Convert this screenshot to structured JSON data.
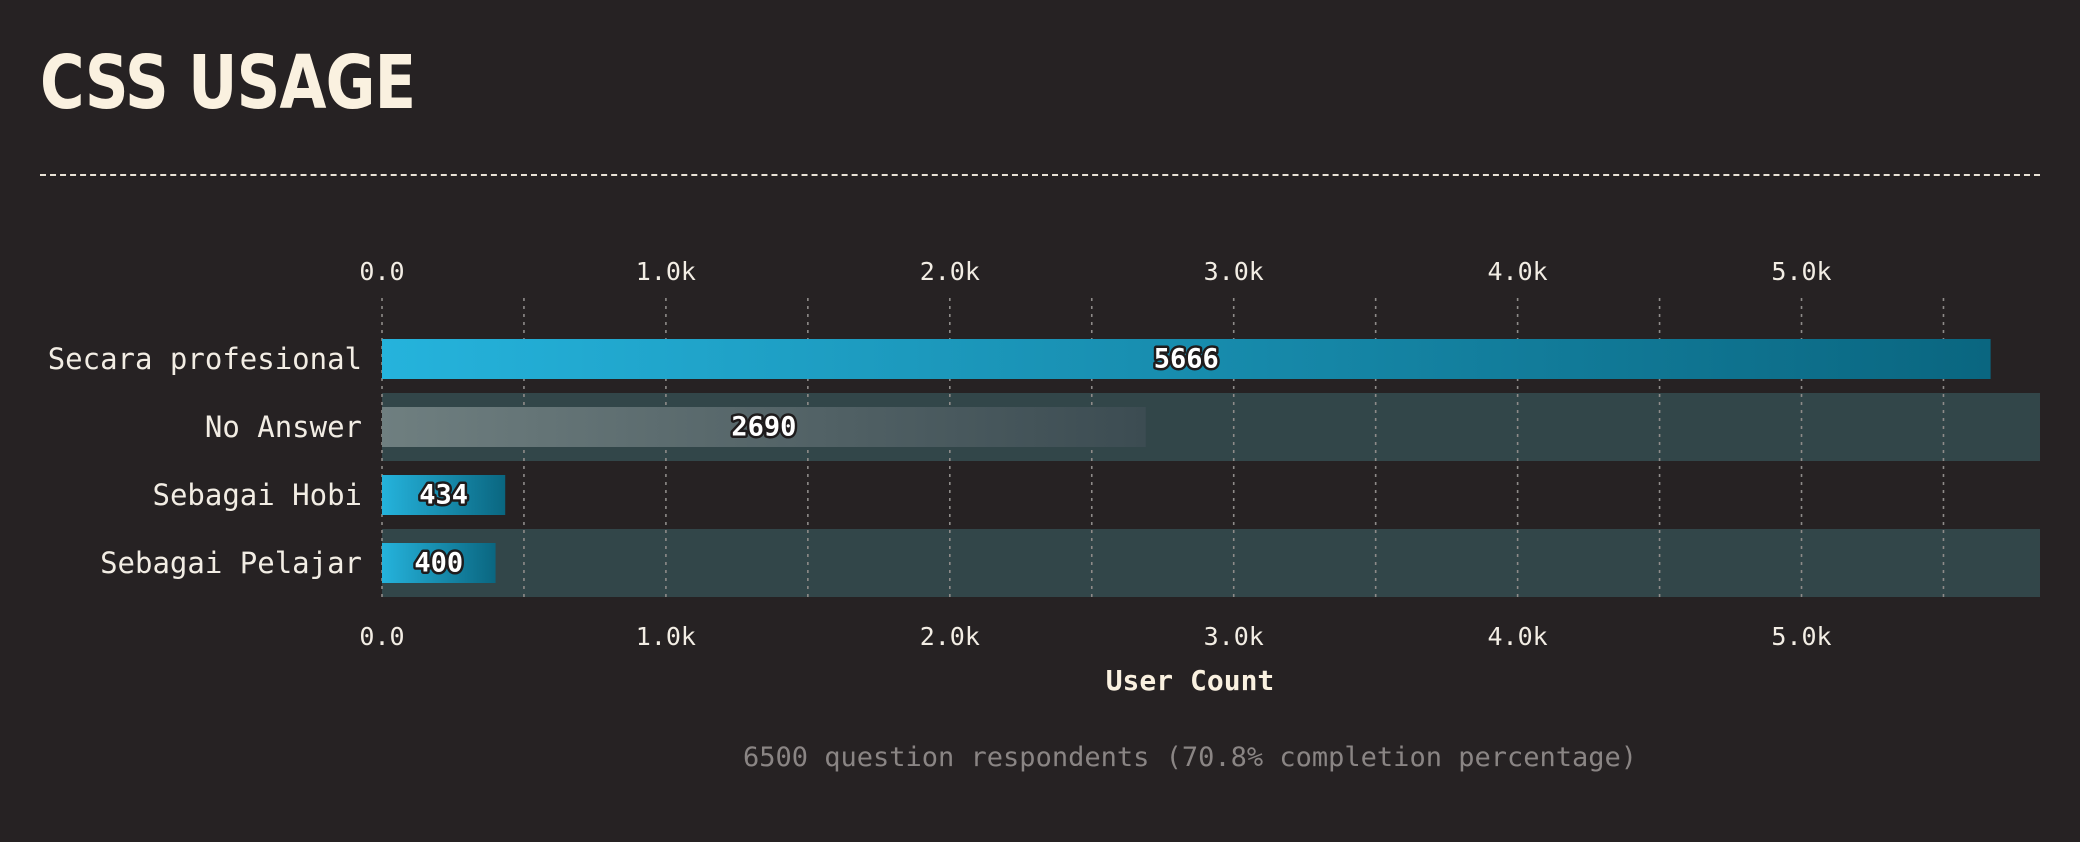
{
  "title": "CSS USAGE",
  "footnote": "6500 question respondents (70.8% completion percentage)",
  "colors": {
    "background": "#262223",
    "bar_highlight_start": "#25b3dc",
    "bar_highlight_end": "#0a6680",
    "bar_muted_start": "#6f7f80",
    "bar_muted_end": "#3c4c52",
    "row_band": "#324649",
    "text": "#f2ede4"
  },
  "chart_data": {
    "type": "bar",
    "orientation": "horizontal",
    "categories": [
      "Secara profesional",
      "No Answer",
      "Sebagai Hobi",
      "Sebagai Pelajar"
    ],
    "values": [
      5666,
      2690,
      434,
      400
    ],
    "highlight": [
      true,
      false,
      true,
      true
    ],
    "xlabel": "User Count",
    "xlim": [
      0,
      5840
    ],
    "xticks": [
      0,
      1000,
      2000,
      3000,
      4000,
      5000
    ],
    "xtick_labels": [
      "0.0",
      "1.0k",
      "2.0k",
      "3.0k",
      "4.0k",
      "5.0k"
    ],
    "minor_gridlines": [
      500,
      1500,
      2500,
      3500,
      4500,
      5500
    ],
    "grid": true,
    "axis_labels_position": "top and bottom"
  }
}
